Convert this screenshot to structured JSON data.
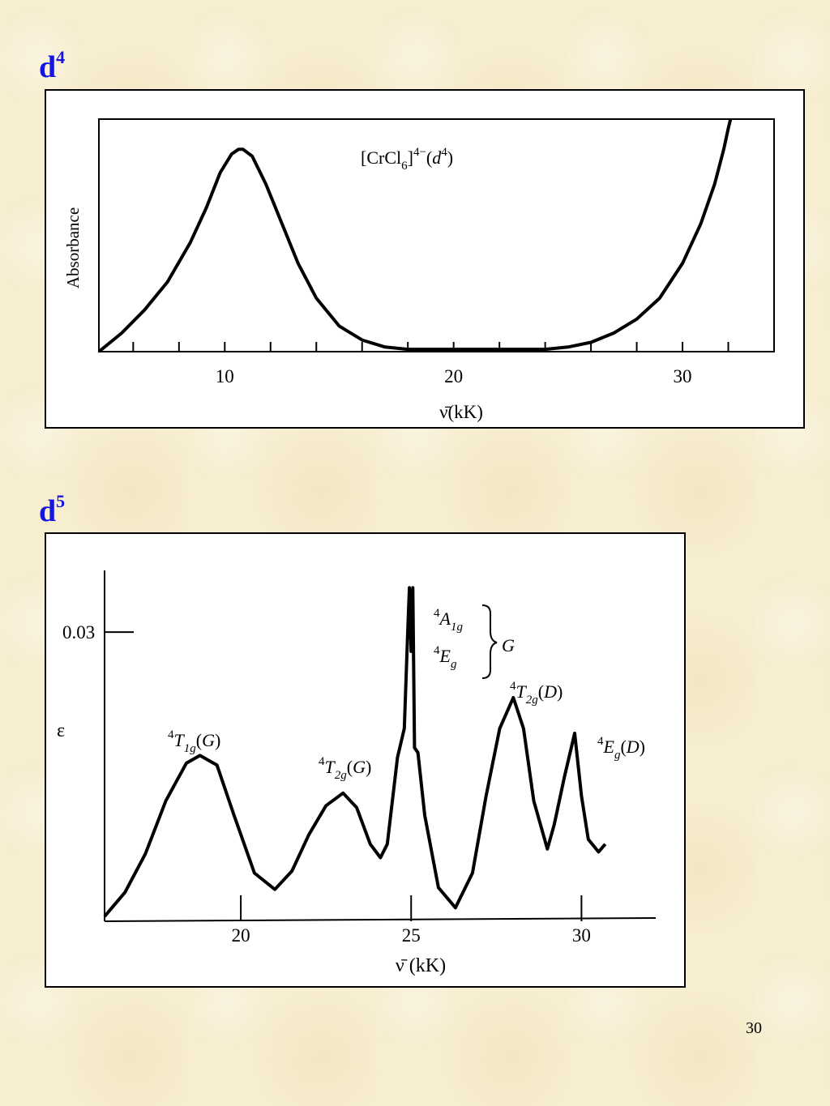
{
  "slide_number": "30",
  "charts_meta": [
    {
      "heading_main": "d",
      "heading_sup": "4"
    },
    {
      "heading_main": "d",
      "heading_sup": "5"
    }
  ],
  "chart_data": [
    {
      "type": "line",
      "title": "[CrCl6]4−(d4)",
      "title_parts": {
        "base": "[CrCl",
        "sub": "6",
        "mid": "]",
        "charge": "4−",
        "open": "(",
        "ital": "d",
        "sup2": "4",
        "close": ")"
      },
      "xlabel": "ν̄(kK)",
      "ylabel": "Absorbance",
      "xlim": [
        4.5,
        34
      ],
      "ylim": [
        0,
        1
      ],
      "xticks_labeled": [
        "10",
        "20",
        "30"
      ],
      "xtick_values": [
        10,
        20,
        30
      ],
      "minor_ticks": [
        6,
        8,
        10,
        12,
        14,
        16,
        18,
        20,
        22,
        24,
        26,
        28,
        30,
        32
      ],
      "grid": false,
      "y_values_relative": true,
      "series": [
        {
          "x": [
            4.5,
            5.5,
            6.5,
            7.5,
            8.5,
            9.2,
            9.8,
            10.3,
            10.6,
            10.8,
            11.2,
            11.8,
            12.5,
            13.2,
            14.0,
            15.0,
            16.0,
            17.0,
            18.0,
            20.0,
            22.0,
            24.0,
            25.0,
            26.0,
            27.0,
            28.0,
            29.0,
            30.0,
            30.8,
            31.4,
            31.8,
            32.0,
            32.1
          ],
          "y": [
            0.0,
            0.08,
            0.18,
            0.3,
            0.47,
            0.62,
            0.77,
            0.85,
            0.87,
            0.87,
            0.84,
            0.72,
            0.55,
            0.38,
            0.23,
            0.11,
            0.05,
            0.02,
            0.01,
            0.01,
            0.01,
            0.01,
            0.02,
            0.04,
            0.08,
            0.14,
            0.23,
            0.38,
            0.55,
            0.72,
            0.87,
            0.96,
            1.0
          ]
        }
      ]
    },
    {
      "type": "line",
      "xlabel": "ν̄ (kK)",
      "ylabel": "ε",
      "xlim": [
        16,
        31.3
      ],
      "ylim": [
        0,
        0.0364
      ],
      "xticks_labeled": [
        "20",
        "25",
        "30"
      ],
      "xtick_values": [
        20,
        25,
        30
      ],
      "ytick_values": [
        0.03
      ],
      "ytick_labels": [
        "0.03"
      ],
      "grid": false,
      "annotations": [
        {
          "sup": "4",
          "main": "T",
          "sub": "1g",
          "tail": "(G)",
          "x": 18.8
        },
        {
          "sup": "4",
          "main": "T",
          "sub": "2g",
          "tail": "(G)",
          "x": 23.0
        },
        {
          "sup": "4",
          "main": "A",
          "sub": "1g",
          "tail": "",
          "x": 25.0
        },
        {
          "sup": "4",
          "main": "E",
          "sub": "g",
          "tail": "",
          "x": 25.0
        },
        {
          "sup": "",
          "main": "G",
          "sub": "",
          "tail": "",
          "x": 25.0
        },
        {
          "sup": "4",
          "main": "T",
          "sub": "2g",
          "tail": "(D)",
          "x": 28.0
        },
        {
          "sup": "4",
          "main": "E",
          "sub": "g",
          "tail": "(D)",
          "x": 29.8
        }
      ],
      "series": [
        {
          "x": [
            16.0,
            16.6,
            17.2,
            17.8,
            18.4,
            18.8,
            19.3,
            19.8,
            20.4,
            21.0,
            21.5,
            22.0,
            22.5,
            23.0,
            23.4,
            23.8,
            24.1,
            24.3,
            24.6,
            24.8,
            24.9,
            24.95,
            25.0,
            25.05,
            25.1,
            25.2,
            25.4,
            25.8,
            26.3,
            26.8,
            27.2,
            27.6,
            28.0,
            28.3,
            28.6,
            29.0,
            29.2,
            29.5,
            29.8,
            30.0,
            30.2,
            30.5,
            30.7
          ],
          "y": [
            0.0005,
            0.003,
            0.007,
            0.0125,
            0.0164,
            0.0172,
            0.0162,
            0.011,
            0.005,
            0.0033,
            0.0052,
            0.009,
            0.012,
            0.0133,
            0.0118,
            0.008,
            0.0066,
            0.008,
            0.017,
            0.02,
            0.03,
            0.0346,
            0.028,
            0.0346,
            0.018,
            0.0175,
            0.011,
            0.0035,
            0.0014,
            0.005,
            0.013,
            0.02,
            0.0232,
            0.02,
            0.0125,
            0.0075,
            0.01,
            0.015,
            0.0195,
            0.013,
            0.0085,
            0.0072,
            0.008
          ]
        }
      ]
    }
  ]
}
